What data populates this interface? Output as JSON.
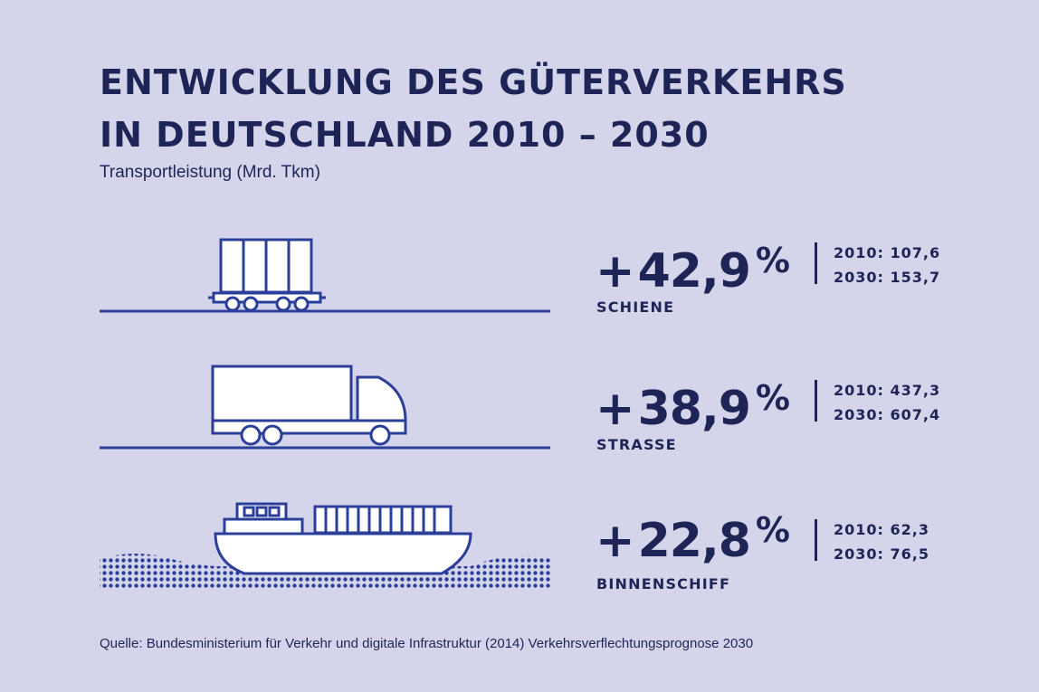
{
  "title": {
    "line1": "ENTWICKLUNG DES GÜTERVERKEHRS",
    "line2": "IN DEUTSCHLAND 2010 – 2030"
  },
  "subtitle": "Transportleistung (Mrd. Tkm)",
  "source": "Quelle: Bundesministerium für Verkehr und digitale Infrastruktur (2014) Verkehrsverflechtungsprognose 2030",
  "colors": {
    "background": "#d4d5eb",
    "text": "#1f2456",
    "line": "#2b3f9a",
    "icon_fill": "#ffffff"
  },
  "chart_data": {
    "type": "table",
    "columns": [
      "2010",
      "2030"
    ],
    "rows": [
      {
        "label": "SCHIENE",
        "icon": "freight-train-icon",
        "change": "+42,9",
        "change_unit": "%",
        "sign": "+",
        "change_value": "42,9",
        "v2010": "2010: 107,6",
        "v2030": "2030: 153,7",
        "values": [
          107.6,
          153.7
        ],
        "change_pct": 42.9
      },
      {
        "label": "STRASSE",
        "icon": "truck-icon",
        "change": "+38,9",
        "change_unit": "%",
        "sign": "+",
        "change_value": "38,9",
        "v2010": "2010: 437,3",
        "v2030": "2030: 607,4",
        "values": [
          437.3,
          607.4
        ],
        "change_pct": 38.9
      },
      {
        "label": "BINNENSCHIFF",
        "icon": "cargo-ship-icon",
        "change": "+22,8",
        "change_unit": "%",
        "sign": "+",
        "change_value": "22,8",
        "v2010": "2010: 62,3",
        "v2030": "2030: 76,5",
        "values": [
          62.3,
          76.5
        ],
        "change_pct": 22.8
      }
    ]
  }
}
